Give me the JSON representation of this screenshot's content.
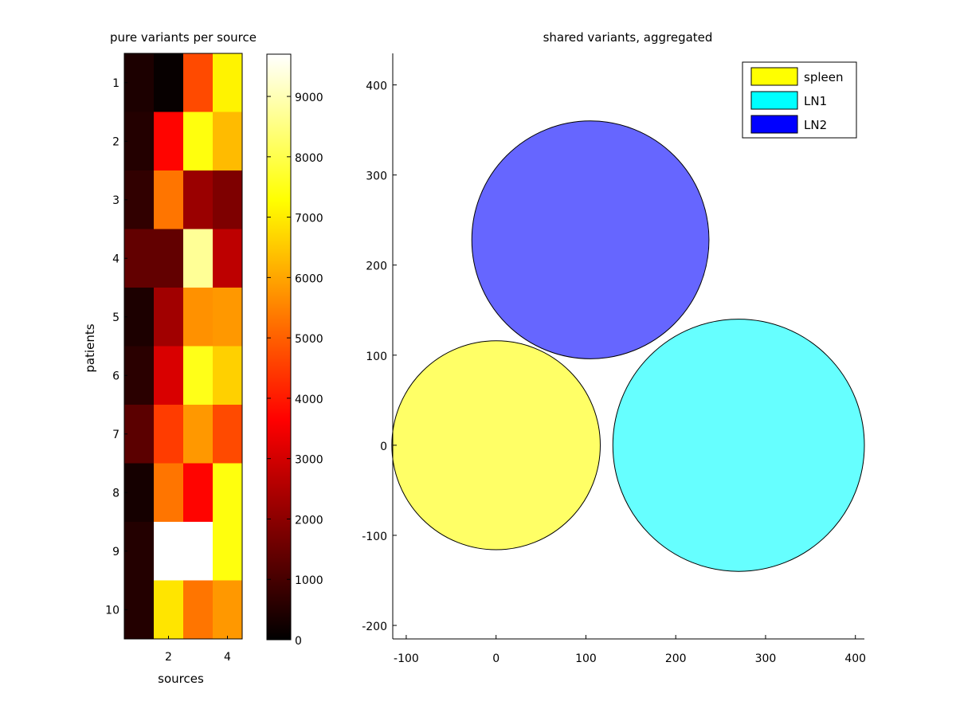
{
  "chart_data": [
    {
      "type": "heatmap",
      "title": "pure variants per source",
      "xlabel": "sources",
      "ylabel": "patients",
      "x_ticks": [
        "2",
        "4"
      ],
      "y_ticks": [
        "1",
        "2",
        "3",
        "4",
        "5",
        "6",
        "7",
        "8",
        "9",
        "10"
      ],
      "colormap": "hot",
      "colorbar": {
        "min": 0,
        "max": 9700,
        "ticks": [
          "0",
          "1000",
          "2000",
          "3000",
          "4000",
          "5000",
          "6000",
          "7000",
          "8000",
          "9000"
        ]
      },
      "rows": [
        "1",
        "2",
        "3",
        "4",
        "5",
        "6",
        "7",
        "8",
        "9",
        "10"
      ],
      "columns": [
        1,
        2,
        3,
        4
      ],
      "values": [
        [
          400,
          100,
          4700,
          7100
        ],
        [
          500,
          3700,
          7400,
          6300
        ],
        [
          700,
          5300,
          2200,
          1800
        ],
        [
          1400,
          1400,
          8700,
          2700
        ],
        [
          400,
          2300,
          5700,
          5800
        ],
        [
          600,
          3100,
          7500,
          6600
        ],
        [
          1300,
          4500,
          5800,
          4700
        ],
        [
          300,
          5300,
          3700,
          7400
        ],
        [
          500,
          9700,
          9700,
          7400
        ],
        [
          500,
          6900,
          5300,
          5800
        ]
      ]
    },
    {
      "type": "scatter",
      "title": "shared variants, aggregated",
      "xlabel": "",
      "ylabel": "",
      "xlim": [
        -115,
        410
      ],
      "ylim": [
        -215,
        435
      ],
      "x_ticks": [
        "-100",
        "0",
        "100",
        "200",
        "300",
        "400"
      ],
      "y_ticks": [
        "-200",
        "-100",
        "0",
        "100",
        "200",
        "300",
        "400"
      ],
      "legend_position": "top-right",
      "series": [
        {
          "name": "spleen",
          "center_x": 0,
          "center_y": 0,
          "radius": 116,
          "color": "#ffff66",
          "legend_color": "#ffff00"
        },
        {
          "name": "LN1",
          "center_x": 270,
          "center_y": 0,
          "radius": 140,
          "color": "#66ffff",
          "legend_color": "#00ffff"
        },
        {
          "name": "LN2",
          "center_x": 105,
          "center_y": 228,
          "radius": 132,
          "color": "#6666ff",
          "legend_color": "#0000ff"
        }
      ]
    }
  ]
}
